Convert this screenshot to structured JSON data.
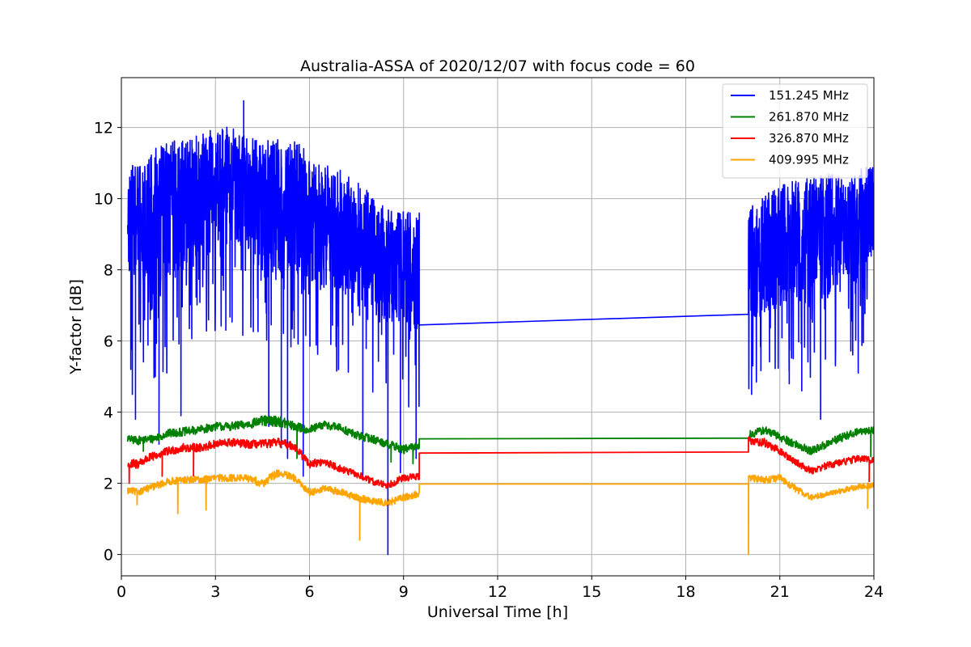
{
  "chart_data": {
    "type": "line",
    "title": "Australia-ASSA of 2020/12/07 with focus code = 60",
    "xlabel": "Universal Time [h]",
    "ylabel": "Y-factor [dB]",
    "xlim": [
      0,
      24
    ],
    "ylim": [
      -0.6,
      13.4
    ],
    "xticks": [
      0,
      3,
      6,
      9,
      12,
      15,
      18,
      21,
      24
    ],
    "yticks": [
      0,
      2,
      4,
      6,
      8,
      10,
      12
    ],
    "grid": true,
    "legend_position": "upper right",
    "series": [
      {
        "name": "151.245 MHz",
        "color": "#0000ff",
        "style": "noisy",
        "x": [
          0.2,
          0.5,
          1.0,
          1.5,
          2.0,
          2.5,
          3.0,
          3.5,
          4.0,
          4.5,
          5.0,
          5.5,
          6.0,
          6.5,
          7.0,
          7.5,
          8.0,
          8.5,
          9.0,
          9.5,
          20.0,
          20.5,
          21.0,
          21.5,
          22.0,
          22.5,
          23.0,
          23.5,
          24.0
        ],
        "y": [
          9.6,
          9.4,
          9.6,
          9.8,
          10.0,
          10.2,
          10.4,
          10.3,
          10.2,
          9.8,
          9.9,
          10.0,
          9.6,
          9.4,
          9.2,
          8.9,
          8.6,
          8.3,
          8.2,
          8.0,
          8.2,
          8.6,
          8.8,
          8.9,
          9.0,
          9.1,
          9.2,
          9.4,
          9.5
        ],
        "amplitude": [
          1.4,
          1.5,
          1.8,
          1.8,
          1.7,
          1.6,
          1.6,
          1.8,
          1.6,
          1.8,
          1.8,
          1.7,
          1.7,
          1.6,
          1.6,
          1.6,
          1.6,
          1.4,
          1.5,
          1.6,
          1.5,
          1.5,
          1.6,
          1.6,
          1.6,
          1.6,
          1.5,
          1.5,
          1.4
        ],
        "gap": {
          "from": 9.5,
          "to": 20.0,
          "y_from": 6.45,
          "y_to": 6.75
        },
        "spikes": [
          [
            0.3,
            5.2
          ],
          [
            0.35,
            4.5
          ],
          [
            0.45,
            3.8
          ],
          [
            1.2,
            3.1
          ],
          [
            1.9,
            3.9
          ],
          [
            3.9,
            12.75
          ],
          [
            4.7,
            3.6
          ],
          [
            5.1,
            3.0
          ],
          [
            5.3,
            2.7
          ],
          [
            5.8,
            2.2
          ],
          [
            7.7,
            2.2
          ],
          [
            8.5,
            0.0
          ],
          [
            8.9,
            2.3
          ],
          [
            9.4,
            2.7
          ],
          [
            20.1,
            4.5
          ],
          [
            21.3,
            4.8
          ],
          [
            21.7,
            4.6
          ],
          [
            22.3,
            3.8
          ],
          [
            23.5,
            5.1
          ]
        ]
      },
      {
        "name": "261.870 MHz",
        "color": "#008000",
        "style": "smooth",
        "x": [
          0.2,
          0.5,
          1.0,
          1.5,
          2.0,
          2.5,
          3.0,
          3.5,
          4.0,
          4.5,
          5.0,
          5.5,
          6.0,
          6.5,
          7.0,
          7.5,
          8.0,
          8.5,
          9.0,
          9.5,
          20.0,
          20.5,
          21.0,
          21.5,
          22.0,
          22.5,
          23.0,
          23.5,
          24.0
        ],
        "y": [
          3.25,
          3.2,
          3.25,
          3.4,
          3.45,
          3.5,
          3.6,
          3.6,
          3.65,
          3.75,
          3.75,
          3.6,
          3.5,
          3.65,
          3.55,
          3.35,
          3.25,
          3.1,
          2.95,
          3.05,
          3.35,
          3.5,
          3.3,
          3.1,
          2.9,
          3.1,
          3.3,
          3.45,
          3.5
        ],
        "amplitude": [
          0.1,
          0.12,
          0.12,
          0.12,
          0.12,
          0.12,
          0.12,
          0.12,
          0.12,
          0.15,
          0.15,
          0.14,
          0.12,
          0.12,
          0.12,
          0.12,
          0.12,
          0.12,
          0.12,
          0.12,
          0.12,
          0.12,
          0.12,
          0.12,
          0.12,
          0.12,
          0.12,
          0.1,
          0.1
        ],
        "gap": {
          "from": 9.5,
          "to": 20.0,
          "y_from": 3.25,
          "y_to": 3.27
        },
        "spikes": [
          [
            0.7,
            2.9
          ],
          [
            5.6,
            2.7
          ],
          [
            8.6,
            2.6
          ],
          [
            9.3,
            2.55
          ],
          [
            23.9,
            2.75
          ]
        ]
      },
      {
        "name": "326.870 MHz",
        "color": "#ff0000",
        "style": "smooth",
        "x": [
          0.2,
          0.5,
          1.0,
          1.5,
          2.0,
          2.5,
          3.0,
          3.5,
          4.0,
          4.5,
          5.0,
          5.5,
          6.0,
          6.5,
          7.0,
          7.5,
          8.0,
          8.5,
          9.0,
          9.5,
          20.0,
          20.5,
          21.0,
          21.5,
          22.0,
          22.5,
          23.0,
          23.5,
          24.0
        ],
        "y": [
          2.5,
          2.55,
          2.75,
          2.9,
          3.0,
          3.0,
          3.1,
          3.15,
          3.1,
          3.1,
          3.15,
          3.05,
          2.55,
          2.6,
          2.4,
          2.25,
          2.05,
          1.95,
          2.15,
          2.2,
          3.2,
          3.15,
          2.9,
          2.6,
          2.35,
          2.5,
          2.6,
          2.7,
          2.65
        ],
        "amplitude": [
          0.15,
          0.15,
          0.12,
          0.12,
          0.12,
          0.12,
          0.12,
          0.12,
          0.12,
          0.12,
          0.12,
          0.12,
          0.12,
          0.1,
          0.1,
          0.1,
          0.1,
          0.1,
          0.1,
          0.1,
          0.1,
          0.12,
          0.1,
          0.1,
          0.1,
          0.1,
          0.1,
          0.1,
          0.1
        ],
        "gap": {
          "from": 9.5,
          "to": 20.0,
          "y_from": 2.85,
          "y_to": 2.88
        },
        "spikes": [
          [
            0.25,
            2.0
          ],
          [
            1.3,
            2.2
          ],
          [
            2.3,
            2.2
          ],
          [
            23.85,
            2.05
          ]
        ]
      },
      {
        "name": "409.995 MHz",
        "color": "#ffa500",
        "style": "smooth",
        "x": [
          0.2,
          0.5,
          1.0,
          1.5,
          2.0,
          2.5,
          3.0,
          3.5,
          4.0,
          4.5,
          5.0,
          5.5,
          6.0,
          6.5,
          7.0,
          7.5,
          8.0,
          8.5,
          9.0,
          9.5,
          20.0,
          20.5,
          21.0,
          21.5,
          22.0,
          22.5,
          23.0,
          23.5,
          24.0
        ],
        "y": [
          1.8,
          1.75,
          1.9,
          2.05,
          2.1,
          2.1,
          2.15,
          2.15,
          2.15,
          2.0,
          2.3,
          2.15,
          1.75,
          1.85,
          1.75,
          1.6,
          1.5,
          1.45,
          1.6,
          1.7,
          2.15,
          2.1,
          2.15,
          1.85,
          1.6,
          1.7,
          1.8,
          1.9,
          1.95
        ],
        "amplitude": [
          0.1,
          0.1,
          0.1,
          0.1,
          0.1,
          0.1,
          0.1,
          0.1,
          0.1,
          0.12,
          0.12,
          0.1,
          0.1,
          0.1,
          0.1,
          0.1,
          0.1,
          0.1,
          0.1,
          0.1,
          0.1,
          0.1,
          0.1,
          0.1,
          0.08,
          0.08,
          0.08,
          0.08,
          0.08
        ],
        "gap": {
          "from": 9.5,
          "to": 20.0,
          "y_from": 1.98,
          "y_to": 1.98
        },
        "spikes": [
          [
            0.5,
            1.4
          ],
          [
            1.8,
            1.15
          ],
          [
            2.7,
            1.25
          ],
          [
            7.6,
            0.4
          ],
          [
            20.0,
            0.0
          ],
          [
            23.8,
            1.3
          ]
        ]
      }
    ]
  }
}
